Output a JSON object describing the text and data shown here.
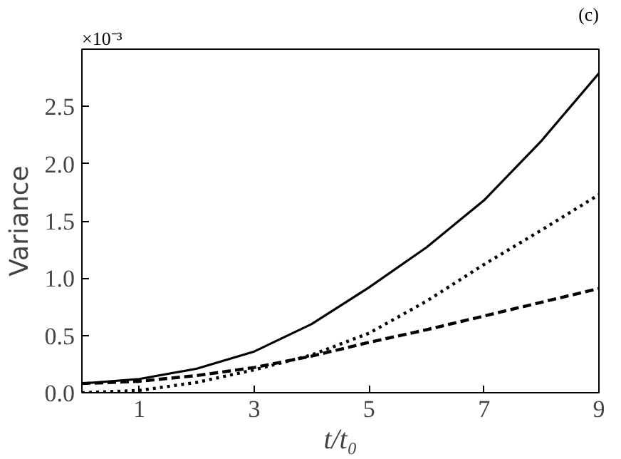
{
  "chart_data": {
    "type": "line",
    "xlabel": "t/t₀",
    "ylabel": "Variance",
    "annotations": [
      "×10⁻³",
      "(c)"
    ],
    "x": [
      0,
      1,
      2,
      3,
      4,
      5,
      6,
      7,
      8,
      9
    ],
    "series": [
      {
        "color": "#000000",
        "line_style": "solid",
        "values": [
          0.08,
          0.12,
          0.21,
          0.36,
          0.6,
          0.92,
          1.27,
          1.68,
          2.2,
          2.79
        ]
      },
      {
        "color": "#000000",
        "line_style": "dotted",
        "values": [
          0.0,
          0.02,
          0.09,
          0.2,
          0.33,
          0.52,
          0.8,
          1.12,
          1.42,
          1.73
        ]
      },
      {
        "color": "#000000",
        "line_style": "dashed",
        "values": [
          0.08,
          0.1,
          0.15,
          0.22,
          0.32,
          0.44,
          0.55,
          0.67,
          0.79,
          0.91
        ]
      }
    ],
    "xlim": [
      0,
      9
    ],
    "xticks": [
      1,
      3,
      5,
      7,
      9
    ],
    "ylim": [
      0,
      3.0
    ],
    "yticks": [
      {
        "value": 0,
        "label": "0.0"
      },
      {
        "value": 0.5,
        "label": "0.5"
      },
      {
        "value": 1,
        "label": "1.0"
      },
      {
        "value": 1.5,
        "label": "1.5"
      },
      {
        "value": 2,
        "label": "2.0"
      },
      {
        "value": 2.5,
        "label": "2.5"
      }
    ],
    "grid": false,
    "marker": "none"
  }
}
